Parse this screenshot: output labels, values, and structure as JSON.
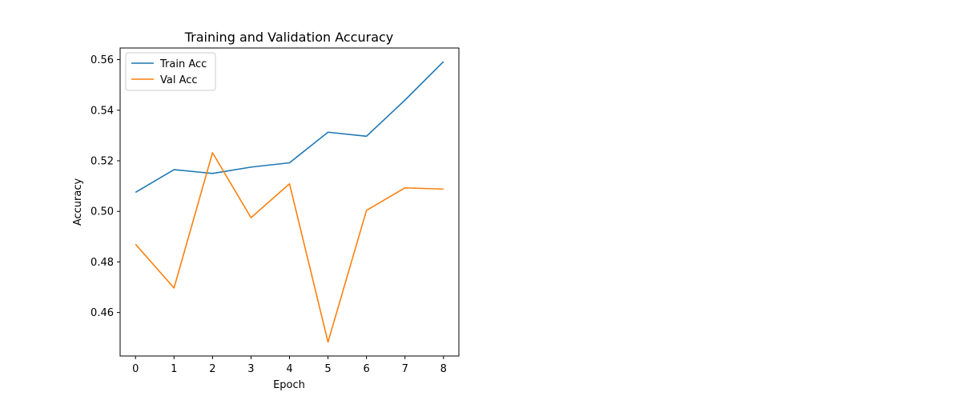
{
  "chart_data": {
    "type": "line",
    "title": "Training and Validation Accuracy",
    "xlabel": "Epoch",
    "ylabel": "Accuracy",
    "x": [
      0,
      1,
      2,
      3,
      4,
      5,
      6,
      7,
      8
    ],
    "xticks": [
      "0",
      "1",
      "2",
      "3",
      "4",
      "5",
      "6",
      "7",
      "8"
    ],
    "xlim": [
      -0.4,
      8.4
    ],
    "yticks": [
      "0.46",
      "0.48",
      "0.50",
      "0.52",
      "0.54",
      "0.56"
    ],
    "ytick_values": [
      0.46,
      0.48,
      0.5,
      0.52,
      0.54,
      0.56
    ],
    "ylim": [
      0.4428,
      0.5646
    ],
    "grid": false,
    "legend_position": "top-left",
    "series": [
      {
        "name": "Train Acc",
        "color": "#1f77b4",
        "values": [
          0.5075,
          0.5165,
          0.515,
          0.5175,
          0.5192,
          0.5313,
          0.5297,
          0.544,
          0.5592
        ]
      },
      {
        "name": "Val Acc",
        "color": "#ff7f0e",
        "values": [
          0.487,
          0.4697,
          0.5232,
          0.4975,
          0.5109,
          0.4483,
          0.5004,
          0.5093,
          0.5088
        ]
      }
    ]
  }
}
